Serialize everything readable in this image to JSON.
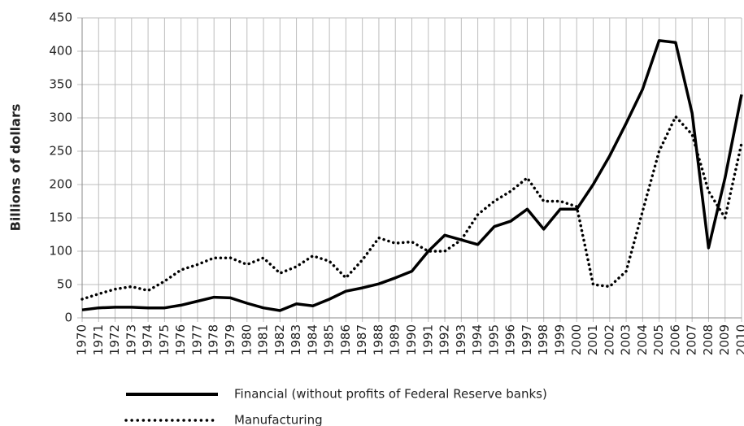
{
  "chart_data": {
    "type": "line",
    "y_label": "Billions of dollars",
    "categories": [
      "1970",
      "1971",
      "1972",
      "1973",
      "1974",
      "1975",
      "1976",
      "1977",
      "1978",
      "1979",
      "1980",
      "1981",
      "1982",
      "1983",
      "1984",
      "1985",
      "1986",
      "1987",
      "1988",
      "1989",
      "1990",
      "1991",
      "1992",
      "1993",
      "1994",
      "1995",
      "1996",
      "1997",
      "1998",
      "1999",
      "2000",
      "2001",
      "2002",
      "2003",
      "2004",
      "2005",
      "2006",
      "2007",
      "2008",
      "2009",
      "2010"
    ],
    "series": [
      {
        "name": "Financial (without profits of Federal Reserve banks)",
        "color": "#000000",
        "style": "solid",
        "values": [
          12,
          15,
          16,
          16,
          15,
          15,
          19,
          25,
          31,
          30,
          22,
          15,
          11,
          21,
          18,
          28,
          40,
          45,
          51,
          60,
          70,
          100,
          124,
          117,
          110,
          137,
          145,
          163,
          133,
          163,
          163,
          200,
          243,
          292,
          343,
          416,
          413,
          307,
          105,
          210,
          335
        ]
      },
      {
        "name": "Manufacturing",
        "color": "#000000",
        "style": "dotted",
        "values": [
          28,
          36,
          43,
          47,
          41,
          55,
          72,
          80,
          90,
          90,
          80,
          90,
          67,
          77,
          93,
          85,
          60,
          87,
          120,
          112,
          114,
          100,
          100,
          117,
          155,
          175,
          190,
          210,
          175,
          175,
          167,
          50,
          47,
          70,
          160,
          250,
          302,
          275,
          190,
          150,
          262
        ]
      }
    ],
    "ylim": [
      0,
      450
    ],
    "yticks": [
      0,
      50,
      100,
      150,
      200,
      250,
      300,
      350,
      400,
      450
    ],
    "grid": true
  }
}
